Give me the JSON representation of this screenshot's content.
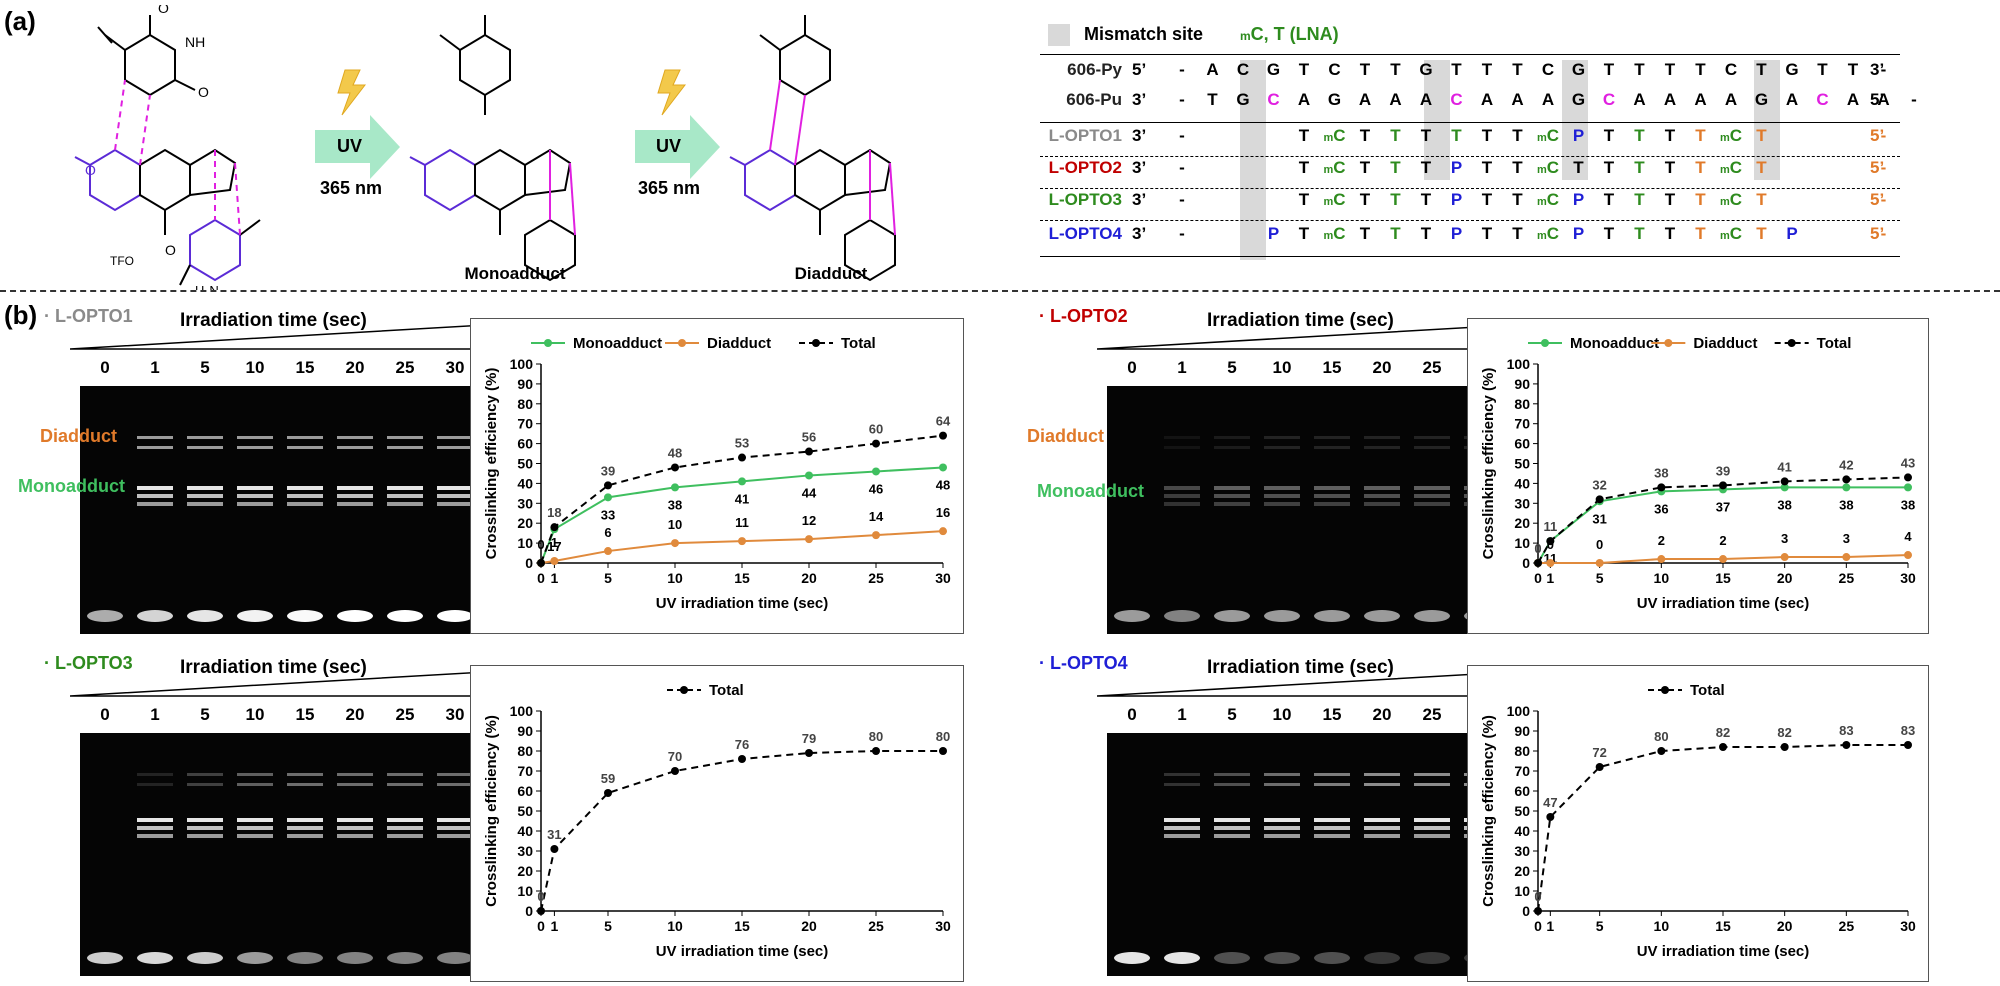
{
  "panel_a": {
    "label": "(a)",
    "uv_labels": [
      "UV",
      "UV"
    ],
    "wavelength_labels": [
      "365 nm",
      "365 nm"
    ],
    "structure_labels": [
      "Monoadduct",
      "Diadduct"
    ],
    "tfo_label": "TFO",
    "legend": {
      "mismatch_label": "Mismatch site",
      "lna_label_m": "m",
      "lna_label_rest": "C, T (LNA)"
    },
    "sequences": [
      {
        "name": "606-Py",
        "end5": "5’",
        "end3": "3’",
        "name_color": "#222222"
      },
      {
        "name": "606-Pu",
        "end5": "3’",
        "end3": "5’",
        "name_color": "#222222"
      },
      {
        "name": "L-OPTO1",
        "end5": "3’",
        "end3": "5’",
        "name_color": "#8a8a8a"
      },
      {
        "name": "L-OPTO2",
        "end5": "3’",
        "end3": "5’",
        "name_color": "#c00000"
      },
      {
        "name": "L-OPTO3",
        "end5": "3’",
        "end3": "5’",
        "name_color": "#2e8b1e"
      },
      {
        "name": "L-OPTO4",
        "end5": "3’",
        "end3": "5’",
        "name_color": "#1f1fd6"
      }
    ]
  },
  "panel_b": {
    "label": "(b)",
    "gel_title": "Irradiation time (sec)",
    "lane_labels": [
      "0",
      "1",
      "5",
      "10",
      "15",
      "20",
      "25",
      "30"
    ],
    "diadduct_label": "Diadduct",
    "monoadduct_label": "Monoadduct",
    "subpanels": [
      {
        "name": "· L-OPTO1",
        "color": "#8a8a8a"
      },
      {
        "name": "· L-OPTO2",
        "color": "#c00000"
      },
      {
        "name": "· L-OPTO3",
        "color": "#2e8b1e"
      },
      {
        "name": "· L-OPTO4",
        "color": "#1f1fd6"
      }
    ]
  },
  "colors": {
    "monoadduct": "#3fbf5f",
    "diadduct": "#e08a3c",
    "total": "#000000",
    "magenta": "#e020e0",
    "purple": "#5b2bd6",
    "orange": "#e07a2a"
  },
  "chart_data": [
    {
      "type": "line",
      "xlabel": "UV irradiation time (sec)",
      "ylabel": "Crosslinking efficiency (%)",
      "x": [
        0,
        1,
        5,
        10,
        15,
        20,
        25,
        30
      ],
      "ylim": [
        0,
        100
      ],
      "yticks": [
        0,
        10,
        20,
        30,
        40,
        50,
        60,
        70,
        80,
        90,
        100
      ],
      "series": [
        {
          "name": "Monoadduct",
          "values": [
            0,
            17,
            33,
            38,
            41,
            44,
            46,
            48
          ],
          "labels": [
            "",
            "17",
            "33",
            "38",
            "41",
            "44",
            "46",
            "48"
          ]
        },
        {
          "name": "Diadduct",
          "values": [
            0,
            1,
            6,
            10,
            11,
            12,
            14,
            16
          ],
          "labels": [
            "0",
            "1",
            "6",
            "10",
            "11",
            "12",
            "14",
            "16"
          ]
        },
        {
          "name": "Total",
          "values": [
            0,
            18,
            39,
            48,
            53,
            56,
            60,
            64
          ],
          "labels": [
            "",
            "18",
            "39",
            "48",
            "53",
            "56",
            "60",
            "64"
          ]
        }
      ]
    },
    {
      "type": "line",
      "xlabel": "UV irradiation time (sec)",
      "ylabel": "Crosslinking efficiency (%)",
      "x": [
        0,
        1,
        5,
        10,
        15,
        20,
        25,
        30
      ],
      "ylim": [
        0,
        100
      ],
      "yticks": [
        0,
        10,
        20,
        30,
        40,
        50,
        60,
        70,
        80,
        90,
        100
      ],
      "series": [
        {
          "name": "Monoadduct",
          "values": [
            0,
            11,
            31,
            36,
            37,
            38,
            38,
            38
          ],
          "labels": [
            "",
            "11",
            "31",
            "36",
            "37",
            "38",
            "38",
            "38"
          ]
        },
        {
          "name": "Diadduct",
          "values": [
            0,
            0,
            0,
            2,
            2,
            3,
            3,
            4
          ],
          "labels": [
            "",
            "0",
            "0",
            "2",
            "2",
            "3",
            "3",
            "4"
          ]
        },
        {
          "name": "Total",
          "values": [
            0,
            11,
            32,
            38,
            39,
            41,
            42,
            43
          ],
          "labels": [
            "0",
            "11",
            "32",
            "38",
            "39",
            "41",
            "42",
            "43"
          ]
        }
      ]
    },
    {
      "type": "line",
      "xlabel": "UV irradiation time (sec)",
      "ylabel": "Crosslinking efficiency (%)",
      "x": [
        0,
        1,
        5,
        10,
        15,
        20,
        25,
        30
      ],
      "ylim": [
        0,
        100
      ],
      "yticks": [
        0,
        10,
        20,
        30,
        40,
        50,
        60,
        70,
        80,
        90,
        100
      ],
      "series": [
        {
          "name": "Total",
          "values": [
            0,
            31,
            59,
            70,
            76,
            79,
            80,
            80
          ],
          "labels": [
            "0",
            "31",
            "59",
            "70",
            "76",
            "79",
            "80",
            "80"
          ]
        }
      ]
    },
    {
      "type": "line",
      "xlabel": "UV irradiation time (sec)",
      "ylabel": "Crosslinking efficiency (%)",
      "x": [
        0,
        1,
        5,
        10,
        15,
        20,
        25,
        30
      ],
      "ylim": [
        0,
        100
      ],
      "yticks": [
        0,
        10,
        20,
        30,
        40,
        50,
        60,
        70,
        80,
        90,
        100
      ],
      "series": [
        {
          "name": "Total",
          "values": [
            0,
            47,
            72,
            80,
            82,
            82,
            83,
            83
          ],
          "labels": [
            "0",
            "47",
            "72",
            "80",
            "82",
            "82",
            "83",
            "83"
          ]
        }
      ]
    }
  ]
}
